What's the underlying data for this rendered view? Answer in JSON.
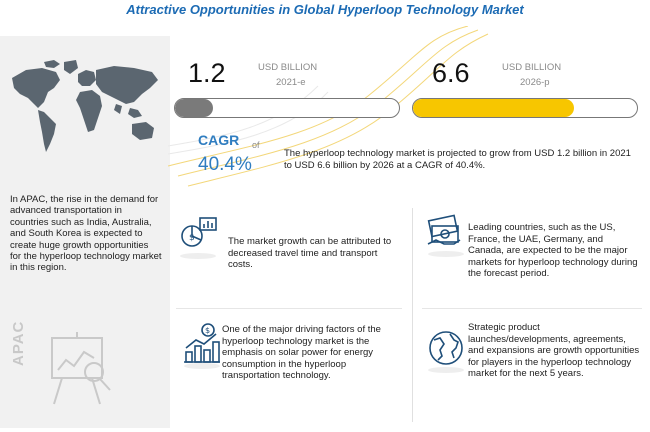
{
  "title": "Attractive Opportunities in Global Hyperloop Technology Market",
  "left_panel": {
    "description": "In APAC, the rise in the demand for advanced transportation in countries such as India, Australia, and South Korea is expected to create huge growth opportunities for the hyperloop technology market in this region.",
    "region_label": "APAC"
  },
  "market": {
    "start": {
      "value": "1.2",
      "unit": "USD BILLION",
      "year": "2021-e",
      "fill_fraction": 0.17,
      "color": "#7a7a7a"
    },
    "end": {
      "value": "6.6",
      "unit": "USD BILLION",
      "year": "2026-p",
      "fill_fraction": 0.72,
      "color": "#f7c600"
    },
    "cagr_label": "CAGR",
    "cagr_of": "of",
    "cagr_value": "40.4%",
    "summary": "The hyperloop technology market is projected to grow from USD 1.2 billion in 2021 to USD 6.6 billion by 2026 at a CAGR of 40.4%."
  },
  "insights": [
    {
      "icon": "cost-analysis-icon",
      "text": "The market growth can be attributed to decreased travel time and transport costs."
    },
    {
      "icon": "money-globe-icon",
      "text": "Leading countries, such as the US, France, the UAE, Germany, and Canada, are expected to be the major markets for hyperloop technology during the forecast period."
    },
    {
      "icon": "growth-chart-icon",
      "text": "One of the major driving factors of the hyperloop technology market is the emphasis on solar power for energy consumption in the hyperloop transportation technology."
    },
    {
      "icon": "globe-icon",
      "text": "Strategic product launches/developments, agreements, and expansions are growth opportunities for players in the hyperloop technology market for the next 5 years."
    }
  ],
  "colors": {
    "accent_blue": "#2f7dc0",
    "title_blue": "#1c6bb4",
    "highlight_yellow": "#f7c600"
  }
}
